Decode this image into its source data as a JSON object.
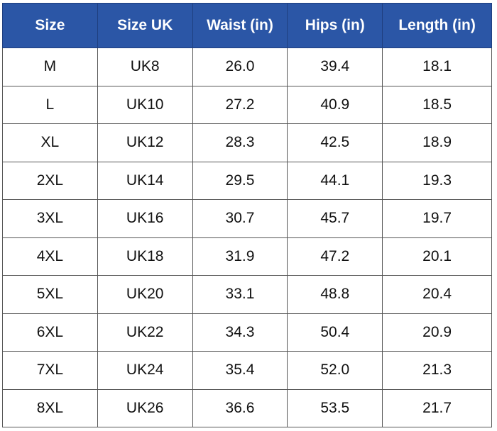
{
  "headers": [
    "Size",
    "Size UK",
    "Waist (in)",
    "Hips (in)",
    "Length (in)"
  ],
  "header_color": "#2b56a6",
  "rows": [
    [
      "M",
      "UK8",
      "26.0",
      "39.4",
      "18.1"
    ],
    [
      "L",
      "UK10",
      "27.2",
      "40.9",
      "18.5"
    ],
    [
      "XL",
      "UK12",
      "28.3",
      "42.5",
      "18.9"
    ],
    [
      "2XL",
      "UK14",
      "29.5",
      "44.1",
      "19.3"
    ],
    [
      "3XL",
      "UK16",
      "30.7",
      "45.7",
      "19.7"
    ],
    [
      "4XL",
      "UK18",
      "31.9",
      "47.2",
      "20.1"
    ],
    [
      "5XL",
      "UK20",
      "33.1",
      "48.8",
      "20.4"
    ],
    [
      "6XL",
      "UK22",
      "34.3",
      "50.4",
      "20.9"
    ],
    [
      "7XL",
      "UK24",
      "35.4",
      "52.0",
      "21.3"
    ],
    [
      "8XL",
      "UK26",
      "36.6",
      "53.5",
      "21.7"
    ]
  ]
}
